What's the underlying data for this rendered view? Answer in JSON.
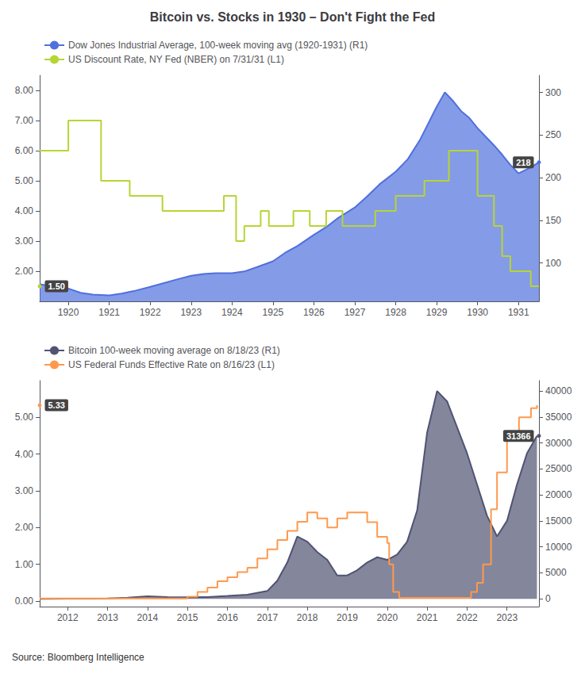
{
  "chart_data": [
    {
      "type": "line",
      "title": "Bitcoin vs. Stocks in 1930 – Don't Fight the Fed",
      "series": [
        {
          "name": "Dow Jones Industrial Average, 100-week moving avg (1920-1931) (R1)",
          "type": "area",
          "axis": "y2",
          "x": [
            1919.3,
            1919.6,
            1920.0,
            1920.3,
            1920.6,
            1921.0,
            1921.3,
            1921.6,
            1922.0,
            1922.3,
            1922.6,
            1923.0,
            1923.3,
            1923.6,
            1924.0,
            1924.3,
            1924.6,
            1925.0,
            1925.3,
            1925.6,
            1926.0,
            1926.3,
            1926.6,
            1927.0,
            1927.3,
            1927.6,
            1928.0,
            1928.3,
            1928.6,
            1929.0,
            1929.2,
            1929.4,
            1929.6,
            1929.8,
            1930.0,
            1930.2,
            1930.4,
            1930.6,
            1930.8,
            1931.0,
            1931.3,
            1931.5
          ],
          "values": [
            75,
            73,
            70,
            65,
            63,
            62,
            64,
            67,
            72,
            76,
            80,
            85,
            87,
            88,
            88,
            90,
            95,
            102,
            112,
            120,
            133,
            142,
            153,
            165,
            178,
            192,
            207,
            222,
            245,
            283,
            300,
            290,
            278,
            270,
            258,
            248,
            238,
            227,
            215,
            205,
            212,
            218
          ]
        },
        {
          "name": "US Discount Rate, NY Fed (NBER) on 7/31/31 (L1)",
          "type": "step",
          "axis": "y",
          "x": [
            1919.3,
            1919.7,
            1920.0,
            1920.3,
            1920.8,
            1921.2,
            1921.5,
            1922.0,
            1922.3,
            1922.8,
            1923.3,
            1923.8,
            1924.0,
            1924.1,
            1924.2,
            1924.3,
            1924.5,
            1924.7,
            1924.9,
            1925.1,
            1925.3,
            1925.5,
            1925.7,
            1925.9,
            1926.1,
            1926.3,
            1926.5,
            1926.7,
            1927.0,
            1927.2,
            1927.5,
            1927.7,
            1928.0,
            1928.3,
            1928.7,
            1929.0,
            1929.3,
            1929.6,
            1929.8,
            1930.0,
            1930.2,
            1930.4,
            1930.6,
            1930.8,
            1931.0,
            1931.3,
            1931.5
          ],
          "values": [
            6.0,
            6.0,
            7.0,
            7.0,
            5.0,
            5.0,
            4.5,
            4.5,
            4.0,
            4.0,
            4.0,
            4.5,
            4.5,
            3.0,
            3.0,
            3.5,
            3.5,
            4.0,
            3.5,
            3.5,
            3.5,
            4.0,
            4.0,
            3.5,
            3.5,
            4.0,
            4.0,
            3.5,
            3.5,
            3.5,
            4.0,
            4.0,
            4.5,
            4.5,
            5.0,
            5.0,
            6.0,
            6.0,
            6.0,
            4.5,
            4.5,
            3.5,
            2.5,
            2.0,
            2.0,
            1.5,
            1.5
          ]
        }
      ],
      "xlim": [
        1919.3,
        1931.5
      ],
      "xticks": [
        1920,
        1921,
        1922,
        1923,
        1924,
        1925,
        1926,
        1927,
        1928,
        1929,
        1930,
        1931
      ],
      "ylim": [
        1.0,
        8.5
      ],
      "yticks": [
        {
          "value": 2.0,
          "label": "2.00"
        },
        {
          "value": 3.0,
          "label": "3.00"
        },
        {
          "value": 4.0,
          "label": "4.00"
        },
        {
          "value": 5.0,
          "label": "5.00"
        },
        {
          "value": 6.0,
          "label": "6.00"
        },
        {
          "value": 7.0,
          "label": "7.00"
        },
        {
          "value": 8.0,
          "label": "8.00"
        }
      ],
      "y2lim": [
        55,
        320
      ],
      "y2ticks": [
        100,
        150,
        200,
        250,
        300
      ],
      "legend": "upper left",
      "grid": false,
      "annotations": [
        {
          "text": "1.50",
          "y": 1.5,
          "axis": "y"
        },
        {
          "text": "218",
          "y": 218,
          "axis": "y2"
        }
      ]
    },
    {
      "type": "line",
      "series": [
        {
          "name": "Bitcoin 100-week moving average on 8/18/23 (R1)",
          "type": "area",
          "axis": "y2",
          "x": [
            2011.3,
            2012.0,
            2012.5,
            2013.0,
            2013.5,
            2014.0,
            2014.5,
            2015.0,
            2015.5,
            2016.0,
            2016.5,
            2017.0,
            2017.25,
            2017.5,
            2017.75,
            2018.0,
            2018.25,
            2018.5,
            2018.75,
            2019.0,
            2019.25,
            2019.5,
            2019.75,
            2020.0,
            2020.25,
            2020.5,
            2020.75,
            2021.0,
            2021.25,
            2021.5,
            2021.75,
            2022.0,
            2022.25,
            2022.5,
            2022.75,
            2023.0,
            2023.25,
            2023.5,
            2023.75
          ],
          "values": [
            5,
            8,
            12,
            50,
            200,
            500,
            350,
            280,
            350,
            550,
            800,
            1500,
            3500,
            7000,
            12000,
            11000,
            9000,
            7500,
            4500,
            4500,
            5500,
            7000,
            8000,
            7500,
            8500,
            11000,
            17000,
            32000,
            40000,
            38000,
            33000,
            28000,
            22000,
            16000,
            12000,
            15000,
            22000,
            28000,
            31366
          ]
        },
        {
          "name": "US Federal Funds Effective Rate on 8/16/23 (L1)",
          "type": "step",
          "axis": "y",
          "x": [
            2011.3,
            2012.0,
            2013.0,
            2014.0,
            2014.5,
            2015.0,
            2015.25,
            2015.5,
            2015.75,
            2016.0,
            2016.25,
            2016.5,
            2016.75,
            2017.0,
            2017.25,
            2017.5,
            2017.75,
            2018.0,
            2018.25,
            2018.5,
            2018.75,
            2019.0,
            2019.25,
            2019.5,
            2019.75,
            2020.0,
            2020.05,
            2020.15,
            2020.3,
            2020.5,
            2021.0,
            2021.5,
            2022.0,
            2022.1,
            2022.25,
            2022.4,
            2022.6,
            2022.75,
            2023.0,
            2023.3,
            2023.6,
            2023.75
          ],
          "values": [
            0.07,
            0.07,
            0.07,
            0.07,
            0.07,
            0.12,
            0.25,
            0.37,
            0.54,
            0.65,
            0.79,
            0.91,
            1.16,
            1.41,
            1.66,
            1.91,
            2.16,
            2.41,
            2.25,
            2.0,
            2.25,
            2.41,
            2.41,
            2.15,
            1.75,
            1.58,
            1.0,
            0.25,
            0.09,
            0.09,
            0.09,
            0.09,
            0.09,
            0.25,
            0.5,
            1.0,
            2.5,
            3.5,
            4.5,
            5.0,
            5.25,
            5.33
          ]
        }
      ],
      "xlim": [
        2011.3,
        2023.8
      ],
      "xticks": [
        2012,
        2013,
        2014,
        2015,
        2016,
        2017,
        2018,
        2019,
        2020,
        2021,
        2022,
        2023
      ],
      "ylim": [
        -0.15,
        6.0
      ],
      "yticks": [
        {
          "value": 0.0,
          "label": "0.00"
        },
        {
          "value": 1.0,
          "label": "1.00"
        },
        {
          "value": 2.0,
          "label": "2.00"
        },
        {
          "value": 3.0,
          "label": "3.00"
        },
        {
          "value": 4.0,
          "label": "4.00"
        },
        {
          "value": 5.0,
          "label": "5.00"
        }
      ],
      "y2lim": [
        -1500,
        42000
      ],
      "y2ticks": [
        0,
        5000,
        10000,
        15000,
        20000,
        25000,
        30000,
        35000,
        40000
      ],
      "legend": "upper left",
      "grid": false,
      "annotations": [
        {
          "text": "5.33",
          "y": 5.33,
          "axis": "y"
        },
        {
          "text": "31366",
          "y": 31366,
          "axis": "y2"
        },
        {
          "text": "Source: Bloomberg Intelligence"
        }
      ]
    }
  ]
}
